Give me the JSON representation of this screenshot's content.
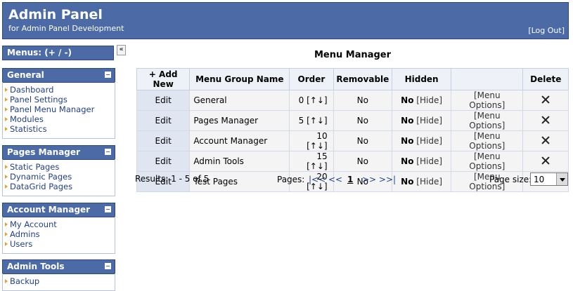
{
  "header": {
    "title": "Admin Panel",
    "subtitle": "for Admin Panel Development",
    "logout": "[Log Out]"
  },
  "sidebar": {
    "menus_label": "Menus: (+ / -)",
    "collapse": "«",
    "groups": [
      {
        "title": "General",
        "items": [
          "Dashboard",
          "Panel Settings",
          "Panel Menu Manager",
          "Modules",
          "Statistics"
        ]
      },
      {
        "title": "Pages Manager",
        "items": [
          "Static Pages",
          "Dynamic Pages",
          "DataGrid Pages"
        ]
      },
      {
        "title": "Account Manager",
        "items": [
          "My Account",
          "Admins",
          "Users"
        ]
      },
      {
        "title": "Admin Tools",
        "items": [
          "Backup"
        ]
      }
    ]
  },
  "table": {
    "title": "Menu Manager",
    "columns": [
      "+ Add New",
      "Menu Group Name",
      "Order",
      "Removable",
      "Hidden",
      "Delete"
    ],
    "rows": [
      {
        "edit": "Edit",
        "name": "General",
        "order": 0,
        "arrows": "[↑↓]",
        "removable": "No",
        "hidden": "No",
        "hide": "[Hide]",
        "options": "[Menu Options]"
      },
      {
        "edit": "Edit",
        "name": "Pages Manager",
        "order": 5,
        "arrows": "[↑↓]",
        "removable": "No",
        "hidden": "No",
        "hide": "[Hide]",
        "options": "[Menu Options]"
      },
      {
        "edit": "Edit",
        "name": "Account Manager",
        "order": 10,
        "arrows": "[↑↓]",
        "removable": "No",
        "hidden": "No",
        "hide": "[Hide]",
        "options": "[Menu Options]"
      },
      {
        "edit": "Edit",
        "name": "Admin Tools",
        "order": 15,
        "arrows": "[↑↓]",
        "removable": "No",
        "hidden": "No",
        "hide": "[Hide]",
        "options": "[Menu Options]"
      },
      {
        "edit": "Edit",
        "name": "Test Pages",
        "order": 20,
        "arrows": "[↑↓]",
        "removable": "No",
        "hidden": "No",
        "hide": "[Hide]",
        "options": "[Menu Options]"
      }
    ]
  },
  "footer": {
    "results": "Results: 1 - 5 of 5",
    "pages_label": "Pages:",
    "prev": "|<< <<",
    "page": "1",
    "next": ">> >>|",
    "page_size_label": "Page size:",
    "page_size": "10"
  }
}
